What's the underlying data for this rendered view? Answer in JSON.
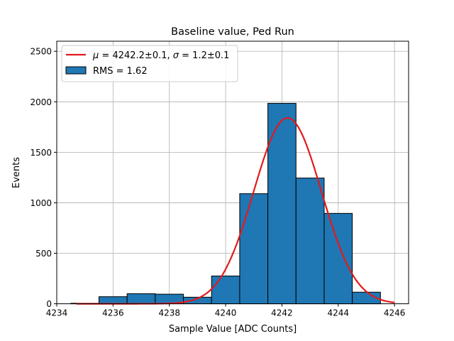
{
  "chart_data": {
    "type": "bar",
    "title": "Baseline value, Ped Run",
    "xlabel": "Sample Value [ADC Counts]",
    "ylabel": "Events",
    "xlim": [
      4234,
      4246.5
    ],
    "ylim": [
      0,
      2600
    ],
    "grid": true,
    "legend_placement": "top-left",
    "xticks": [
      4234,
      4236,
      4238,
      4240,
      4242,
      4244,
      4246
    ],
    "yticks": [
      0,
      500,
      1000,
      1500,
      2000,
      2500
    ],
    "histogram": {
      "name": "RMS = 1.62",
      "color": "#1f77b4",
      "bins": [
        {
          "x0": 4234.5,
          "x1": 4235.5,
          "count": 5
        },
        {
          "x0": 4235.5,
          "x1": 4236.5,
          "count": 70
        },
        {
          "x0": 4236.5,
          "x1": 4237.5,
          "count": 100
        },
        {
          "x0": 4237.5,
          "x1": 4238.5,
          "count": 95
        },
        {
          "x0": 4238.5,
          "x1": 4239.5,
          "count": 65
        },
        {
          "x0": 4239.5,
          "x1": 4240.5,
          "count": 275
        },
        {
          "x0": 4240.5,
          "x1": 4241.5,
          "count": 1090
        },
        {
          "x0": 4241.5,
          "x1": 4242.5,
          "count": 1985
        },
        {
          "x0": 4242.5,
          "x1": 4243.5,
          "count": 1245
        },
        {
          "x0": 4243.5,
          "x1": 4244.5,
          "count": 895
        },
        {
          "x0": 4244.5,
          "x1": 4245.5,
          "count": 115
        }
      ]
    },
    "fit": {
      "name": "μ = 4242.2±0.1, σ = 1.2±0.1",
      "mu_label": "μ",
      "mu_text": " = 4242.2±0.1, ",
      "sigma_label": "σ",
      "sigma_text": " = 1.2±0.1",
      "type": "gaussian",
      "mu": 4242.2,
      "sigma": 1.2,
      "amplitude": 1840,
      "x_range": [
        4234.7,
        4246
      ],
      "color": "#e31a1c"
    }
  }
}
